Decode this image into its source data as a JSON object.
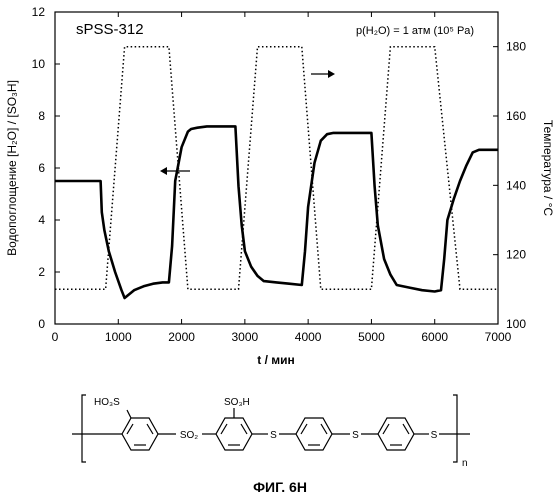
{
  "chart_data": {
    "type": "line",
    "title": "sPSS-312",
    "annotation": "p(H₂O) = 1 атм (10⁵ Pa)",
    "xlabel": "t / мин",
    "ylabel_left": "Водопоглощение [H₂O] / [SO₃H]",
    "ylabel_right": "Температура / °C",
    "xlim": [
      0,
      7000
    ],
    "ylim_left": [
      0,
      12
    ],
    "ylim_right": [
      100,
      190
    ],
    "x_ticks": [
      0,
      1000,
      2000,
      3000,
      4000,
      5000,
      6000,
      7000
    ],
    "y_left_ticks": [
      0,
      2,
      4,
      6,
      8,
      10,
      12
    ],
    "y_right_ticks": [
      100,
      120,
      140,
      160,
      180
    ],
    "grid": false,
    "series": [
      {
        "axis": "left",
        "style": "solid",
        "x": [
          0,
          720,
          740,
          780,
          850,
          950,
          1050,
          1100,
          1150,
          1250,
          1400,
          1550,
          1700,
          1800,
          1850,
          1900,
          2000,
          2100,
          2150,
          2250,
          2400,
          2600,
          2850,
          2900,
          2950,
          3000,
          3100,
          3200,
          3300,
          3500,
          3700,
          3900,
          3950,
          4000,
          4100,
          4200,
          4300,
          4400,
          4600,
          4800,
          5000,
          5050,
          5100,
          5200,
          5300,
          5400,
          5600,
          5800,
          6000,
          6100,
          6150,
          6200,
          6300,
          6400,
          6500,
          6600,
          6700,
          7000
        ],
        "y": [
          5.5,
          5.5,
          4.3,
          3.6,
          2.8,
          2.0,
          1.3,
          1.0,
          1.1,
          1.3,
          1.45,
          1.55,
          1.6,
          1.6,
          3.0,
          5.5,
          6.8,
          7.4,
          7.5,
          7.55,
          7.6,
          7.6,
          7.6,
          5.3,
          3.8,
          2.8,
          2.2,
          1.85,
          1.65,
          1.6,
          1.55,
          1.5,
          2.8,
          4.5,
          6.2,
          7.05,
          7.3,
          7.35,
          7.35,
          7.35,
          7.35,
          5.3,
          3.8,
          2.5,
          1.9,
          1.5,
          1.4,
          1.3,
          1.25,
          1.3,
          2.5,
          4.0,
          4.8,
          5.5,
          6.1,
          6.6,
          6.7,
          6.7
        ]
      },
      {
        "axis": "right",
        "style": "dotted",
        "x": [
          0,
          800,
          1100,
          1800,
          2100,
          2900,
          3200,
          3900,
          4200,
          5000,
          5300,
          6000,
          6400,
          7000
        ],
        "y": [
          110,
          110,
          180,
          180,
          110,
          110,
          180,
          180,
          110,
          110,
          180,
          180,
          110,
          110
        ]
      }
    ]
  },
  "structure": {
    "ho3s_label": "HO₃S",
    "so3h_label": "SO₃H",
    "so2_label": "SO₂",
    "s1_label": "S",
    "s2_label": "S",
    "s3_label": "S",
    "n_label": "n"
  },
  "caption": "ФИГ. 6Н"
}
